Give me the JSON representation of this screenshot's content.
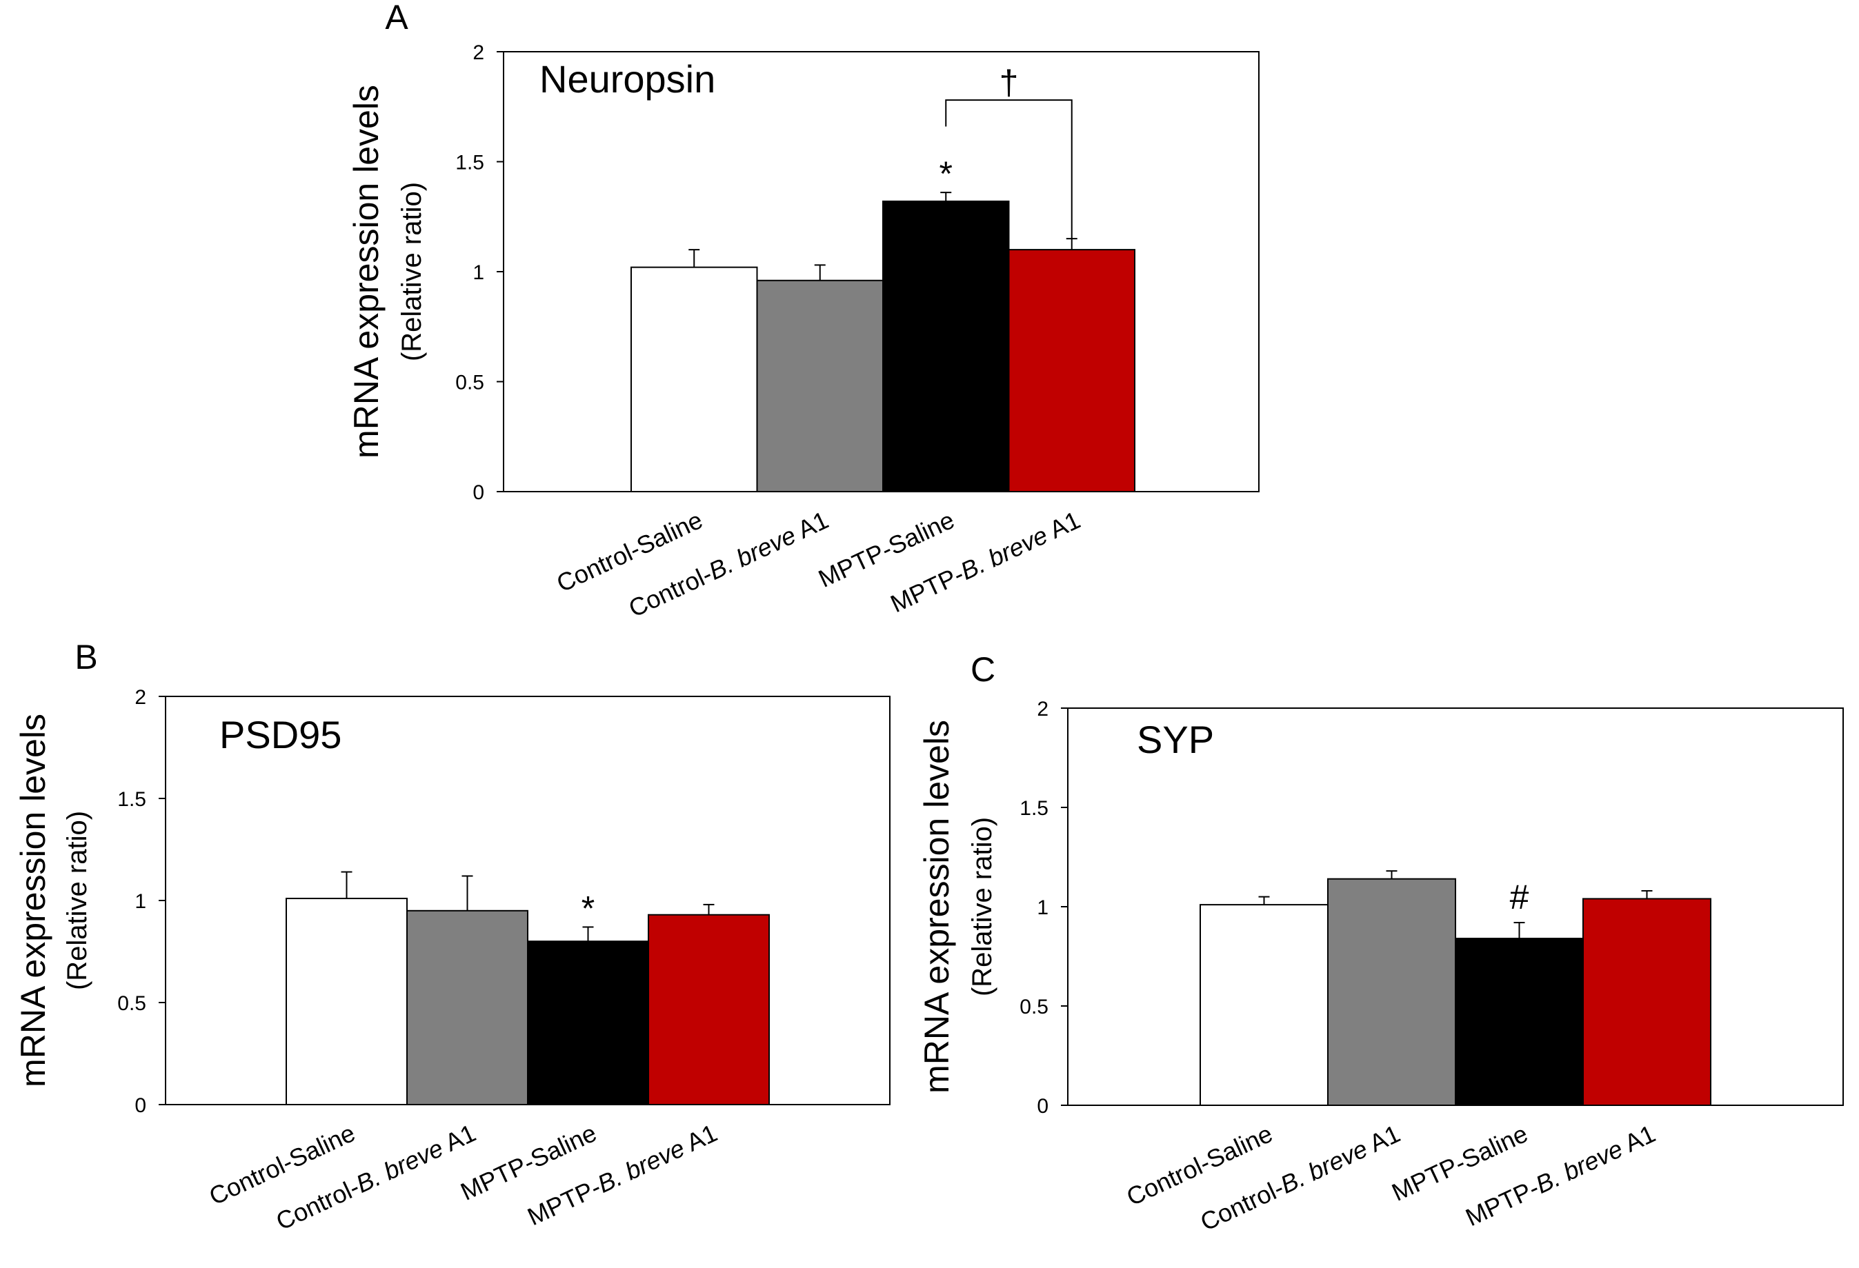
{
  "categories": [
    "Control-Saline",
    "Control-B. breve A1",
    "MPTP-Saline",
    "MPTP-B. breve A1"
  ],
  "category_parts": [
    [
      {
        "t": "Control-Saline",
        "i": false
      }
    ],
    [
      {
        "t": "Control-",
        "i": false
      },
      {
        "t": "B. breve",
        "i": true
      },
      {
        "t": " A1",
        "i": false
      }
    ],
    [
      {
        "t": "MPTP-Saline",
        "i": false
      }
    ],
    [
      {
        "t": "MPTP-",
        "i": false
      },
      {
        "t": "B. breve",
        "i": true
      },
      {
        "t": " A1",
        "i": false
      }
    ]
  ],
  "bar_colors": [
    "#ffffff",
    "#808080",
    "#000000",
    "#c00000"
  ],
  "ylabel_line1": "mRNA expression levels",
  "ylabel_line2": "(Relative  ratio)",
  "chart_data": [
    {
      "type": "bar",
      "panel": "A",
      "title": "Neuropsin",
      "categories": [
        "Control-Saline",
        "Control-B. breve A1",
        "MPTP-Saline",
        "MPTP-B. breve A1"
      ],
      "values": [
        1.02,
        0.96,
        1.32,
        1.1
      ],
      "errors": [
        0.08,
        0.07,
        0.04,
        0.05
      ],
      "ylim": [
        0,
        2
      ],
      "yticks": [
        "0",
        "0.5",
        "1",
        "1.5",
        "2"
      ],
      "ylabel": "mRNA expression levels (Relative  ratio)",
      "annotations": [
        {
          "symbol": "*",
          "category_index": 2
        }
      ],
      "bracket": {
        "from": 2,
        "to": 3,
        "symbol": "†"
      }
    },
    {
      "type": "bar",
      "panel": "B",
      "title": "PSD95",
      "categories": [
        "Control-Saline",
        "Control-B. breve A1",
        "MPTP-Saline",
        "MPTP-B. breve A1"
      ],
      "values": [
        1.01,
        0.95,
        0.8,
        0.93
      ],
      "errors": [
        0.13,
        0.17,
        0.07,
        0.05
      ],
      "ylim": [
        0,
        2
      ],
      "yticks": [
        "0",
        "0.5",
        "1",
        "1.5",
        "2"
      ],
      "ylabel": "mRNA expression levels (Relative  ratio)",
      "annotations": [
        {
          "symbol": "*",
          "category_index": 2
        }
      ]
    },
    {
      "type": "bar",
      "panel": "C",
      "title": "SYP",
      "categories": [
        "Control-Saline",
        "Control-B. breve A1",
        "MPTP-Saline",
        "MPTP-B. breve A1"
      ],
      "values": [
        1.01,
        1.14,
        0.84,
        1.04
      ],
      "errors": [
        0.04,
        0.04,
        0.08,
        0.04
      ],
      "ylim": [
        0,
        2
      ],
      "yticks": [
        "0",
        "0.5",
        "1",
        "1.5",
        "2"
      ],
      "ylabel": "mRNA expression levels (Relative  ratio)",
      "annotations": [
        {
          "symbol": "#",
          "category_index": 2
        }
      ]
    }
  ]
}
